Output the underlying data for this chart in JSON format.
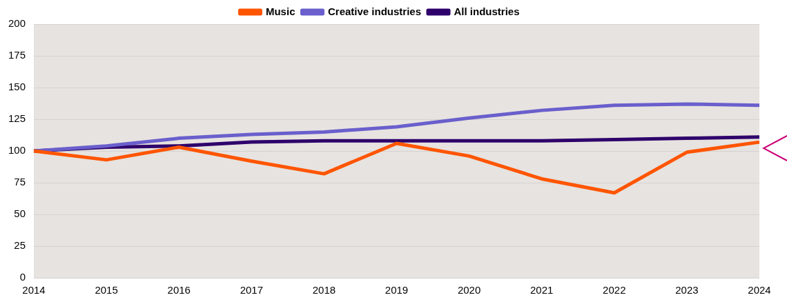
{
  "chart_data": {
    "type": "line",
    "categories": [
      "2014",
      "2015",
      "2016",
      "2017",
      "2018",
      "2019",
      "2020",
      "2021",
      "2022",
      "2023",
      "2024"
    ],
    "series": [
      {
        "name": "Music",
        "color": "#ff5500",
        "values": [
          100,
          93,
          103,
          92,
          82,
          106,
          96,
          78,
          67,
          99,
          107
        ]
      },
      {
        "name": "Creative industries",
        "color": "#6a5fcc",
        "values": [
          100,
          104,
          110,
          113,
          115,
          119,
          126,
          132,
          136,
          137,
          136
        ]
      },
      {
        "name": "All industries",
        "color": "#2e006b",
        "values": [
          100,
          103,
          104,
          107,
          108,
          108,
          108,
          108,
          109,
          110,
          111
        ]
      }
    ],
    "ylim": [
      0,
      200
    ],
    "yticks": [
      0,
      25,
      50,
      75,
      100,
      125,
      150,
      175,
      200
    ],
    "grid": "y",
    "legend": "top",
    "marker": "none",
    "line_style": "solid"
  }
}
